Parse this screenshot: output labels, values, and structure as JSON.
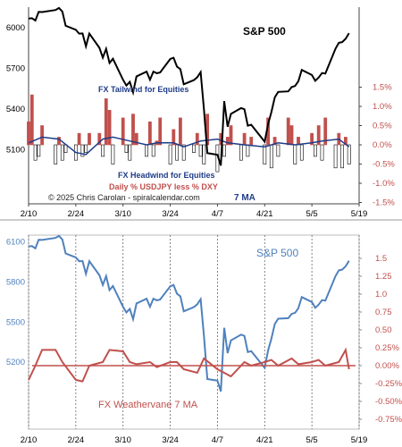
{
  "chart_data": [
    {
      "type": "line",
      "panel": "top",
      "title": "",
      "x_ticks": [
        "2/10",
        "2/24",
        "3/10",
        "3/24",
        "4/7",
        "4/21",
        "5/5",
        "5/19"
      ],
      "x_start": "2025-02-10",
      "x_end": "2025-05-19",
      "left_axis": {
        "ticks": [
          "6000",
          "5700",
          "5400",
          "5100"
        ],
        "ylim": [
          4700,
          6150
        ]
      },
      "right_axis": {
        "ticks": [
          "1.5%",
          "1.0%",
          "0.5%",
          "0.0%",
          "-0.5%",
          "-1.0%",
          "-1.5%"
        ],
        "ylim": [
          -1.5,
          1.5
        ]
      },
      "annotations": {
        "sp500": "S&P 500",
        "tailwind": "FX Tailwind for Equities",
        "headwind": "FX Headwind for Equities",
        "daily": "Daily % USDJPY less % DXY",
        "copyright": "© 2025 Chris Carolan - spiralcalendar.com",
        "ma": "7 MA"
      },
      "colors": {
        "sp500": "#000000",
        "ma": "#1f3c88",
        "positive_bar": "#c0504d",
        "negative_bar": "#ffffff",
        "right_axis": "#c0504d"
      },
      "series": [
        {
          "name": "S&P 500",
          "axis": "left",
          "x": [
            "2025-02-10",
            "2025-02-11",
            "2025-02-12",
            "2025-02-13",
            "2025-02-14",
            "2025-02-18",
            "2025-02-19",
            "2025-02-20",
            "2025-02-21",
            "2025-02-24",
            "2025-02-25",
            "2025-02-26",
            "2025-02-27",
            "2025-02-28",
            "2025-03-03",
            "2025-03-04",
            "2025-03-05",
            "2025-03-06",
            "2025-03-07",
            "2025-03-10",
            "2025-03-11",
            "2025-03-12",
            "2025-03-13",
            "2025-03-14",
            "2025-03-17",
            "2025-03-18",
            "2025-03-19",
            "2025-03-20",
            "2025-03-21",
            "2025-03-24",
            "2025-03-25",
            "2025-03-26",
            "2025-03-27",
            "2025-03-28",
            "2025-03-31",
            "2025-04-01",
            "2025-04-02",
            "2025-04-03",
            "2025-04-04",
            "2025-04-07",
            "2025-04-08",
            "2025-04-09",
            "2025-04-10",
            "2025-04-11",
            "2025-04-14",
            "2025-04-15",
            "2025-04-16",
            "2025-04-17",
            "2025-04-21",
            "2025-04-22",
            "2025-04-23",
            "2025-04-24",
            "2025-04-25",
            "2025-04-28",
            "2025-04-29",
            "2025-04-30",
            "2025-05-01",
            "2025-05-02",
            "2025-05-05",
            "2025-05-06",
            "2025-05-07",
            "2025-05-08",
            "2025-05-09",
            "2025-05-12",
            "2025-05-13",
            "2025-05-14",
            "2025-05-15",
            "2025-05-16"
          ],
          "values": [
            6066,
            6068,
            6051,
            6115,
            6114,
            6129,
            6144,
            6117,
            6013,
            5983,
            5955,
            5956,
            5861,
            5955,
            5850,
            5778,
            5843,
            5739,
            5770,
            5615,
            5572,
            5599,
            5522,
            5639,
            5675,
            5615,
            5675,
            5663,
            5668,
            5768,
            5777,
            5712,
            5693,
            5581,
            5612,
            5633,
            5671,
            5397,
            5074,
            5062,
            4982,
            5457,
            5268,
            5363,
            5406,
            5397,
            5276,
            5283,
            5158,
            5288,
            5376,
            5485,
            5525,
            5529,
            5561,
            5569,
            5604,
            5687,
            5650,
            5607,
            5631,
            5664,
            5660,
            5844,
            5887,
            5892,
            5917,
            5958
          ]
        },
        {
          "name": "7 MA",
          "axis": "right",
          "x": [
            "2025-02-10",
            "2025-02-14",
            "2025-02-19",
            "2025-02-24",
            "2025-02-27",
            "2025-03-04",
            "2025-03-07",
            "2025-03-12",
            "2025-03-17",
            "2025-03-20",
            "2025-03-25",
            "2025-03-28",
            "2025-04-02",
            "2025-04-07",
            "2025-04-10",
            "2025-04-15",
            "2025-04-21",
            "2025-04-25",
            "2025-04-30",
            "2025-05-05",
            "2025-05-08",
            "2025-05-13",
            "2025-05-16"
          ],
          "values": [
            0.05,
            0.2,
            0.15,
            -0.2,
            -0.25,
            0.15,
            0.2,
            0.1,
            0.0,
            0.05,
            0.05,
            -0.05,
            0.1,
            0.15,
            0.05,
            0.0,
            -0.05,
            0.05,
            0.0,
            0.05,
            0.1,
            0.15,
            -0.05
          ]
        },
        {
          "name": "Daily %",
          "axis": "right",
          "type": "bar",
          "x": [
            "2025-02-10",
            "2025-02-11",
            "2025-02-12",
            "2025-02-13",
            "2025-02-14",
            "2025-02-18",
            "2025-02-19",
            "2025-02-20",
            "2025-02-21",
            "2025-02-24",
            "2025-02-25",
            "2025-02-26",
            "2025-02-27",
            "2025-02-28",
            "2025-03-03",
            "2025-03-04",
            "2025-03-05",
            "2025-03-06",
            "2025-03-07",
            "2025-03-10",
            "2025-03-11",
            "2025-03-12",
            "2025-03-13",
            "2025-03-14",
            "2025-03-17",
            "2025-03-18",
            "2025-03-19",
            "2025-03-20",
            "2025-03-21",
            "2025-03-24",
            "2025-03-25",
            "2025-03-26",
            "2025-03-27",
            "2025-03-28",
            "2025-03-31",
            "2025-04-01",
            "2025-04-02",
            "2025-04-03",
            "2025-04-04",
            "2025-04-07",
            "2025-04-08",
            "2025-04-09",
            "2025-04-10",
            "2025-04-11",
            "2025-04-14",
            "2025-04-15",
            "2025-04-16",
            "2025-04-17",
            "2025-04-21",
            "2025-04-22",
            "2025-04-23",
            "2025-04-24",
            "2025-04-25",
            "2025-04-28",
            "2025-04-29",
            "2025-04-30",
            "2025-05-01",
            "2025-05-02",
            "2025-05-05",
            "2025-05-06",
            "2025-05-07",
            "2025-05-08",
            "2025-05-09",
            "2025-05-12",
            "2025-05-13",
            "2025-05-14",
            "2025-05-15",
            "2025-05-16"
          ],
          "values": [
            0.6,
            1.3,
            -0.4,
            -0.3,
            0.5,
            -0.5,
            0.2,
            -0.4,
            -0.2,
            -0.4,
            0.3,
            -0.3,
            -0.2,
            0.3,
            0.3,
            -0.3,
            1.2,
            0.9,
            -0.5,
            0.7,
            -0.2,
            -0.4,
            0.8,
            0.3,
            -0.3,
            0.6,
            -0.3,
            0.1,
            0.7,
            -0.5,
            0.4,
            -0.4,
            0.7,
            -0.4,
            -0.2,
            0.3,
            -0.3,
            -0.5,
            0.8,
            -0.7,
            0.3,
            -0.3,
            0.2,
            0.5,
            -0.4,
            0.3,
            -0.3,
            0.2,
            -0.5,
            0.7,
            -0.6,
            0.2,
            -0.3,
            0.7,
            0.5,
            -0.5,
            0.2,
            -0.4,
            0.3,
            -0.3,
            0.5,
            -0.4,
            0.7,
            -0.6,
            0.3,
            -0.6,
            0.2,
            -0.5
          ]
        }
      ]
    },
    {
      "type": "line",
      "panel": "bottom",
      "title": "",
      "x_ticks": [
        "2/10",
        "2/24",
        "3/10",
        "3/24",
        "4/7",
        "4/21",
        "5/5",
        "5/19"
      ],
      "left_axis": {
        "ticks": [
          "6100",
          "5800",
          "5500",
          "5200"
        ],
        "ylim": [
          4700,
          6150
        ]
      },
      "right_axis": {
        "ticks": [
          "1.5",
          "1.25",
          "1.0",
          "0.75",
          "0.50",
          "0.25%",
          "0.00%",
          "-0.25%",
          "-0.50%",
          "-0.75%"
        ],
        "ylim": [
          -0.75,
          1.5
        ]
      },
      "annotations": {
        "sp500": "S&P 500",
        "weathervane": "FX Weathervane 7 MA"
      },
      "colors": {
        "sp500": "#4f81bd",
        "weathervane": "#c0504d",
        "right_axis": "#c0504d",
        "left_axis": "#4f81bd"
      },
      "series": [
        {
          "name": "S&P 500",
          "axis": "left",
          "same_as_top": true
        },
        {
          "name": "FX Weathervane 7 MA",
          "axis": "right",
          "x": [
            "2025-02-10",
            "2025-02-12",
            "2025-02-14",
            "2025-02-18",
            "2025-02-20",
            "2025-02-24",
            "2025-02-26",
            "2025-02-28",
            "2025-03-04",
            "2025-03-06",
            "2025-03-10",
            "2025-03-12",
            "2025-03-14",
            "2025-03-18",
            "2025-03-20",
            "2025-03-24",
            "2025-03-26",
            "2025-03-28",
            "2025-04-01",
            "2025-04-03",
            "2025-04-07",
            "2025-04-09",
            "2025-04-11",
            "2025-04-15",
            "2025-04-17",
            "2025-04-21",
            "2025-04-23",
            "2025-04-25",
            "2025-04-29",
            "2025-05-01",
            "2025-05-05",
            "2025-05-07",
            "2025-05-09",
            "2025-05-13",
            "2025-05-15",
            "2025-05-16"
          ],
          "values": [
            -0.2,
            0.0,
            0.22,
            0.22,
            0.05,
            -0.2,
            -0.22,
            0.0,
            0.05,
            0.22,
            0.2,
            0.05,
            0.02,
            0.05,
            -0.02,
            0.05,
            0.05,
            -0.05,
            -0.1,
            0.1,
            -0.05,
            -0.1,
            -0.15,
            0.05,
            0.0,
            0.05,
            0.08,
            0.0,
            0.1,
            0.02,
            0.05,
            0.08,
            0.0,
            0.05,
            0.22,
            -0.05
          ]
        }
      ]
    }
  ]
}
